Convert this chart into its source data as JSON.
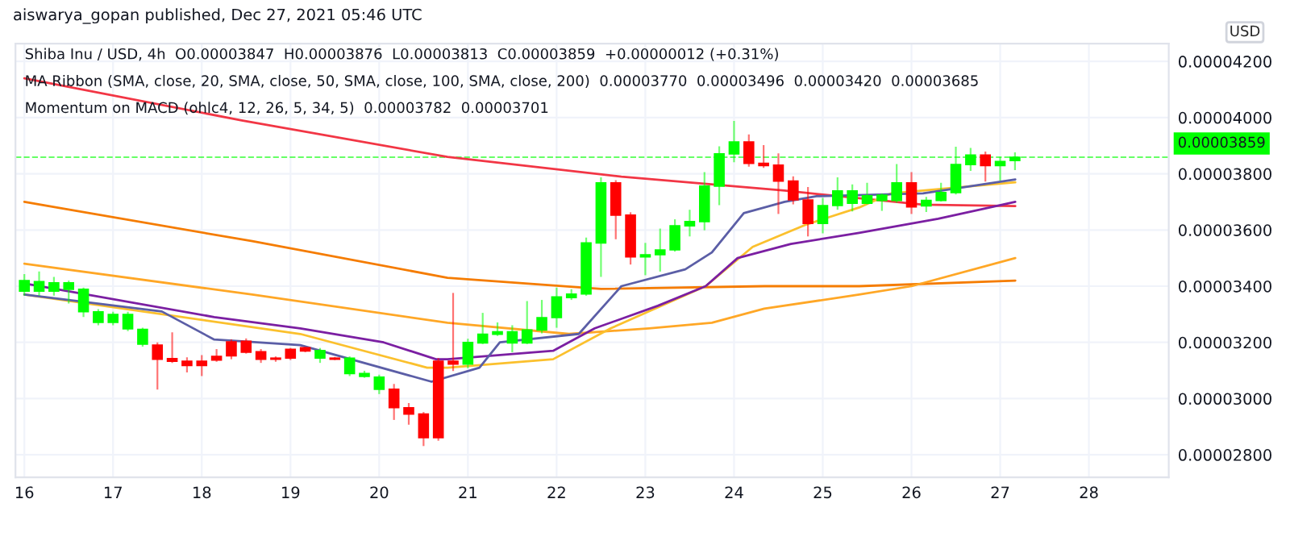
{
  "chart_data": {
    "type": "candlestick",
    "ylabel": "USD",
    "annotations": [
      "aiswarya_gopan published, Dec 27, 2021 05:46 UTC",
      "Shiba Inu / USD, 4h  O0.00003847  H0.00003876  L0.00003813  C0.00003859  +0.00000012 (+0.31%)",
      "MA Ribbon (SMA, close, 20, SMA, close, 50, SMA, close, 100, SMA, close, 200)  0.00003770  0.00003496  0.00003420  0.00003685",
      "Momentum on MACD (ohlc4, 12, 26, 5, 34, 5)  0.00003782  0.00003701"
    ],
    "x": [
      16,
      16.1667,
      16.3333,
      16.5,
      16.6667,
      16.8333,
      17,
      17.1667,
      17.3333,
      17.5,
      17.6667,
      17.8333,
      18,
      18.1667,
      18.3333,
      18.5,
      18.6667,
      18.8333,
      19,
      19.1667,
      19.3333,
      19.5,
      19.6667,
      19.8333,
      20,
      20.1667,
      20.3333,
      20.5,
      20.6667,
      20.8333,
      21,
      21.1667,
      21.3333,
      21.5,
      21.6667,
      21.8333,
      22,
      22.1667,
      22.3333,
      22.5,
      22.6667,
      22.8333,
      23,
      23.1667,
      23.3333,
      23.5,
      23.6667,
      23.8333,
      24,
      24.1667,
      24.3333,
      24.5,
      24.6667,
      24.8333,
      25,
      25.1667,
      25.3333,
      25.5,
      25.6667,
      25.8333,
      26,
      26.1667,
      26.3333,
      26.5,
      26.6667,
      26.8333,
      27,
      27.1667
    ],
    "ohlc": [
      [
        3.382e-05,
        3.443e-05,
        3.366e-05,
        3.42e-05
      ],
      [
        3.382e-05,
        3.452e-05,
        3.366e-05,
        3.416e-05
      ],
      [
        3.382e-05,
        3.433e-05,
        3.366e-05,
        3.412e-05
      ],
      [
        3.389e-05,
        3.42e-05,
        3.338e-05,
        3.412e-05
      ],
      [
        3.309e-05,
        3.395e-05,
        3.29e-05,
        3.389e-05
      ],
      [
        3.271e-05,
        3.318e-05,
        3.261e-05,
        3.309e-05
      ],
      [
        3.271e-05,
        3.309e-05,
        3.261e-05,
        3.299e-05
      ],
      [
        3.248e-05,
        3.309e-05,
        3.24e-05,
        3.299e-05
      ],
      [
        3.194e-05,
        3.252e-05,
        3.185e-05,
        3.246e-05
      ],
      [
        3.19e-05,
        3.2e-05,
        3.032e-05,
        3.14e-05
      ],
      [
        3.142e-05,
        3.236e-05,
        3.127e-05,
        3.133e-05
      ],
      [
        3.133e-05,
        3.147e-05,
        3.093e-05,
        3.118e-05
      ],
      [
        3.133e-05,
        3.155e-05,
        3.08e-05,
        3.118e-05
      ],
      [
        3.15e-05,
        3.176e-05,
        3.131e-05,
        3.137e-05
      ],
      [
        3.202e-05,
        3.211e-05,
        3.14e-05,
        3.152e-05
      ],
      [
        3.204e-05,
        3.214e-05,
        3.16e-05,
        3.165e-05
      ],
      [
        3.167e-05,
        3.176e-05,
        3.127e-05,
        3.14e-05
      ],
      [
        3.144e-05,
        3.15e-05,
        3.131e-05,
        3.14e-05
      ],
      [
        3.175e-05,
        3.18e-05,
        3.137e-05,
        3.144e-05
      ],
      [
        3.181e-05,
        3.184e-05,
        3.165e-05,
        3.169e-05
      ],
      [
        3.144e-05,
        3.18e-05,
        3.127e-05,
        3.171e-05
      ],
      [
        3.144e-05,
        3.148e-05,
        3.137e-05,
        3.14e-05
      ],
      [
        3.089e-05,
        3.15e-05,
        3.08e-05,
        3.144e-05
      ],
      [
        3.079e-05,
        3.099e-05,
        3.074e-05,
        3.089e-05
      ],
      [
        3.033e-05,
        3.085e-05,
        3.016e-05,
        3.076e-05
      ],
      [
        3.033e-05,
        3.052e-05,
        2.924e-05,
        2.968e-05
      ],
      [
        2.967e-05,
        2.984e-05,
        2.907e-05,
        2.945e-05
      ],
      [
        2.945e-05,
        2.952e-05,
        2.831e-05,
        2.861e-05
      ],
      [
        3.133e-05,
        3.144e-05,
        2.85e-05,
        2.861e-05
      ],
      [
        3.133e-05,
        3.376e-05,
        3.098e-05,
        3.123e-05
      ],
      [
        3.123e-05,
        3.213e-05,
        3.108e-05,
        3.2e-05
      ],
      [
        3.198e-05,
        3.305e-05,
        3.194e-05,
        3.229e-05
      ],
      [
        3.229e-05,
        3.271e-05,
        3.223e-05,
        3.238e-05
      ],
      [
        3.198e-05,
        3.261e-05,
        3.165e-05,
        3.238e-05
      ],
      [
        3.198e-05,
        3.347e-05,
        3.194e-05,
        3.244e-05
      ],
      [
        3.244e-05,
        3.351e-05,
        3.232e-05,
        3.288e-05
      ],
      [
        3.288e-05,
        3.395e-05,
        3.252e-05,
        3.362e-05
      ],
      [
        3.359e-05,
        3.389e-05,
        3.351e-05,
        3.372e-05
      ],
      [
        3.372e-05,
        3.573e-05,
        3.366e-05,
        3.554e-05
      ],
      [
        3.554e-05,
        3.787e-05,
        3.433e-05,
        3.768e-05
      ],
      [
        3.768e-05,
        3.777e-05,
        3.567e-05,
        3.653e-05
      ],
      [
        3.653e-05,
        3.663e-05,
        3.477e-05,
        3.504e-05
      ],
      [
        3.504e-05,
        3.554e-05,
        3.439e-05,
        3.512e-05
      ],
      [
        3.512e-05,
        3.605e-05,
        3.452e-05,
        3.529e-05
      ],
      [
        3.529e-05,
        3.638e-05,
        3.523e-05,
        3.615e-05
      ],
      [
        3.615e-05,
        3.672e-05,
        3.577e-05,
        3.63e-05
      ],
      [
        3.63e-05,
        3.806e-05,
        3.599e-05,
        3.756e-05
      ],
      [
        3.756e-05,
        3.898e-05,
        3.688e-05,
        3.871e-05
      ],
      [
        3.871e-05,
        3.988e-05,
        3.841e-05,
        3.913e-05
      ],
      [
        3.913e-05,
        3.94e-05,
        3.825e-05,
        3.837e-05
      ],
      [
        3.837e-05,
        3.902e-05,
        3.821e-05,
        3.829e-05
      ],
      [
        3.831e-05,
        3.873e-05,
        3.657e-05,
        3.774e-05
      ],
      [
        3.774e-05,
        3.791e-05,
        3.691e-05,
        3.707e-05
      ],
      [
        3.707e-05,
        3.753e-05,
        3.577e-05,
        3.623e-05
      ],
      [
        3.623e-05,
        3.714e-05,
        3.588e-05,
        3.687e-05
      ],
      [
        3.687e-05,
        3.787e-05,
        3.672e-05,
        3.739e-05
      ],
      [
        3.695e-05,
        3.762e-05,
        3.666e-05,
        3.739e-05
      ],
      [
        3.695e-05,
        3.768e-05,
        3.691e-05,
        3.722e-05
      ],
      [
        3.705e-05,
        3.73e-05,
        3.668e-05,
        3.724e-05
      ],
      [
        3.705e-05,
        3.835e-05,
        3.697e-05,
        3.768e-05
      ],
      [
        3.768e-05,
        3.806e-05,
        3.657e-05,
        3.682e-05
      ],
      [
        3.686e-05,
        3.718e-05,
        3.664e-05,
        3.705e-05
      ],
      [
        3.705e-05,
        3.768e-05,
        3.701e-05,
        3.733e-05
      ],
      [
        3.733e-05,
        3.896e-05,
        3.726e-05,
        3.833e-05
      ],
      [
        3.833e-05,
        3.892e-05,
        3.81e-05,
        3.867e-05
      ],
      [
        3.867e-05,
        3.879e-05,
        3.772e-05,
        3.829e-05
      ],
      [
        3.829e-05,
        3.86e-05,
        3.776e-05,
        3.844e-05
      ],
      [
        3.847e-05,
        3.876e-05,
        3.813e-05,
        3.859e-05
      ]
    ],
    "colors": [
      "#00ff00",
      "#00ff00",
      "#00ff00",
      "#00ff00",
      "#00ff00",
      "#00ff00",
      "#00ff00",
      "#00ff00",
      "#00ff00",
      "#ff0000",
      "#ff0000",
      "#ff0000",
      "#ff0000",
      "#ff0000",
      "#ff0000",
      "#ff0000",
      "#ff0000",
      "#ff0000",
      "#ff0000",
      "#ff0000",
      "#00ff00",
      "#ff0000",
      "#00ff00",
      "#00ff00",
      "#00ff00",
      "#ff0000",
      "#ff0000",
      "#ff0000",
      "#ff0000",
      "#ff0000",
      "#00ff00",
      "#00ff00",
      "#00ff00",
      "#00ff00",
      "#00ff00",
      "#00ff00",
      "#00ff00",
      "#00ff00",
      "#00ff00",
      "#00ff00",
      "#ff0000",
      "#ff0000",
      "#00ff00",
      "#00ff00",
      "#00ff00",
      "#00ff00",
      "#00ff00",
      "#00ff00",
      "#00ff00",
      "#ff0000",
      "#ff0000",
      "#ff0000",
      "#ff0000",
      "#ff0000",
      "#00ff00",
      "#00ff00",
      "#00ff00",
      "#00ff00",
      "#00ff00",
      "#00ff00",
      "#ff0000",
      "#00ff00",
      "#00ff00",
      "#00ff00",
      "#00ff00",
      "#ff0000",
      "#00ff00",
      "#00ff00"
    ],
    "series": [
      {
        "type": "line",
        "color": "#f23645",
        "x": [
          16,
          18.45,
          20.77,
          22.73,
          24.57,
          26.13,
          27.17
        ],
        "values": [
          4.14e-05,
          3.99e-05,
          3.86e-05,
          3.79e-05,
          3.74e-05,
          3.69e-05,
          3.685e-05
        ]
      },
      {
        "type": "line",
        "color": "#f57c00",
        "x": [
          16,
          18.57,
          20.77,
          22.5,
          24.34,
          25.41,
          27.17
        ],
        "values": [
          3.7e-05,
          3.56e-05,
          3.43e-05,
          3.39e-05,
          3.4e-05,
          3.4e-05,
          3.42e-05
        ]
      },
      {
        "type": "line",
        "color": "#ffa726",
        "x": [
          16,
          18.57,
          20.77,
          22.14,
          23.04,
          23.75,
          24.34,
          25.41,
          26.0,
          27.17
        ],
        "values": [
          3.48e-05,
          3.37e-05,
          3.27e-05,
          3.23e-05,
          3.25e-05,
          3.27e-05,
          3.32e-05,
          3.37e-05,
          3.4e-05,
          3.5e-05
        ]
      },
      {
        "type": "line",
        "color": "#fbc02d",
        "x": [
          16,
          19.11,
          20.54,
          20.77,
          21.96,
          22.61,
          23.68,
          24.21,
          24.82,
          25.41,
          25.77,
          27.17
        ],
        "values": [
          3.37e-05,
          3.23e-05,
          3.11e-05,
          3.11e-05,
          3.14e-05,
          3.25e-05,
          3.4e-05,
          3.54e-05,
          3.62e-05,
          3.68e-05,
          3.73e-05,
          3.77e-05
        ]
      },
      {
        "type": "line",
        "color": "#7b1fa2",
        "x": [
          16,
          18.14,
          19.11,
          20.05,
          20.64,
          20.77,
          21.96,
          22.43,
          23.14,
          23.68,
          24.04,
          24.64,
          25.41,
          26.3,
          27.17
        ],
        "values": [
          3.41e-05,
          3.29e-05,
          3.25e-05,
          3.2e-05,
          3.14e-05,
          3.14e-05,
          3.17e-05,
          3.25e-05,
          3.33e-05,
          3.4e-05,
          3.5e-05,
          3.55e-05,
          3.59e-05,
          3.64e-05,
          3.7e-05
        ]
      },
      {
        "type": "line",
        "color": "#5b5ea6",
        "x": [
          16,
          17.55,
          18.14,
          19.11,
          20.59,
          21.13,
          21.36,
          22.25,
          22.73,
          23.45,
          23.75,
          24.11,
          24.57,
          24.93,
          26.13,
          27.17
        ],
        "values": [
          3.37e-05,
          3.31e-05,
          3.21e-05,
          3.19e-05,
          3.06e-05,
          3.11e-05,
          3.2e-05,
          3.23e-05,
          3.4e-05,
          3.46e-05,
          3.52e-05,
          3.66e-05,
          3.7e-05,
          3.72e-05,
          3.73e-05,
          3.78e-05
        ]
      }
    ],
    "ref_lines": [
      {
        "axis": "y",
        "value": 3.859e-05,
        "label": "0.00003859",
        "color": "#00ff00",
        "line_style": "dashed"
      }
    ],
    "xlim": [
      15.9,
      28.9
    ],
    "xticks": [
      16,
      17,
      18,
      19,
      20,
      21,
      22,
      23,
      24,
      25,
      26,
      27,
      28
    ],
    "ylim": [
      2.72e-05,
      4.263e-05
    ],
    "yticks": [
      {
        "value": 2.8e-05,
        "label": "0.00002800"
      },
      {
        "value": 3e-05,
        "label": "0.00003000"
      },
      {
        "value": 3.2e-05,
        "label": "0.00003200"
      },
      {
        "value": 3.4e-05,
        "label": "0.00003400"
      },
      {
        "value": 3.6e-05,
        "label": "0.00003600"
      },
      {
        "value": 3.8e-05,
        "label": "0.00003800"
      },
      {
        "value": 4e-05,
        "label": "0.00004000"
      },
      {
        "value": 4.2e-05,
        "label": "0.00004200"
      }
    ],
    "grid": true
  }
}
